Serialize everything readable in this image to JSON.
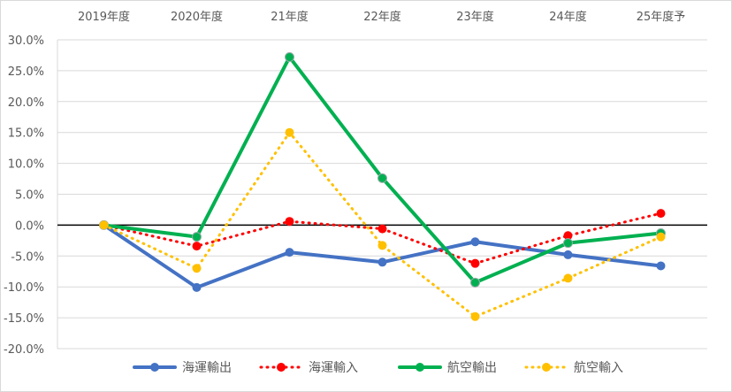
{
  "chart_data": {
    "type": "line",
    "title": "",
    "xlabel": "",
    "ylabel": "",
    "categories": [
      "2019年度",
      "2020年度",
      "21年度",
      "22年度",
      "23年度",
      "24年度",
      "25年度予"
    ],
    "ylim": [
      -20,
      30
    ],
    "yticks": [
      30,
      25,
      20,
      15,
      10,
      5,
      0,
      -5,
      -10,
      -15,
      -20
    ],
    "ytick_labels": [
      "30.0%",
      "25.0%",
      "20.0%",
      "15.0%",
      "10.0%",
      "5.0%",
      "0.0%",
      "-5.0%",
      "-10.0%",
      "-15.0%",
      "-20.0%"
    ],
    "grid": true,
    "legend_position": "bottom",
    "x_labels_position": "top",
    "series": [
      {
        "name": "海運輸出",
        "color": "#4472C4",
        "style": "solid",
        "values": [
          0,
          -10.1,
          -4.4,
          -6.0,
          -2.7,
          -4.8,
          -6.6
        ]
      },
      {
        "name": "海運輸入",
        "color": "#FF0000",
        "style": "dotted",
        "values": [
          0,
          -3.4,
          0.6,
          -0.6,
          -6.2,
          -1.7,
          1.9
        ]
      },
      {
        "name": "航空輸出",
        "color": "#00B050",
        "style": "solid",
        "values": [
          0,
          -1.9,
          27.2,
          7.6,
          -9.3,
          -2.9,
          -1.3
        ]
      },
      {
        "name": "航空輸入",
        "color": "#FFC000",
        "style": "dotted",
        "values": [
          0,
          -7.0,
          15.0,
          -3.3,
          -14.8,
          -8.6,
          -1.9
        ]
      }
    ]
  }
}
